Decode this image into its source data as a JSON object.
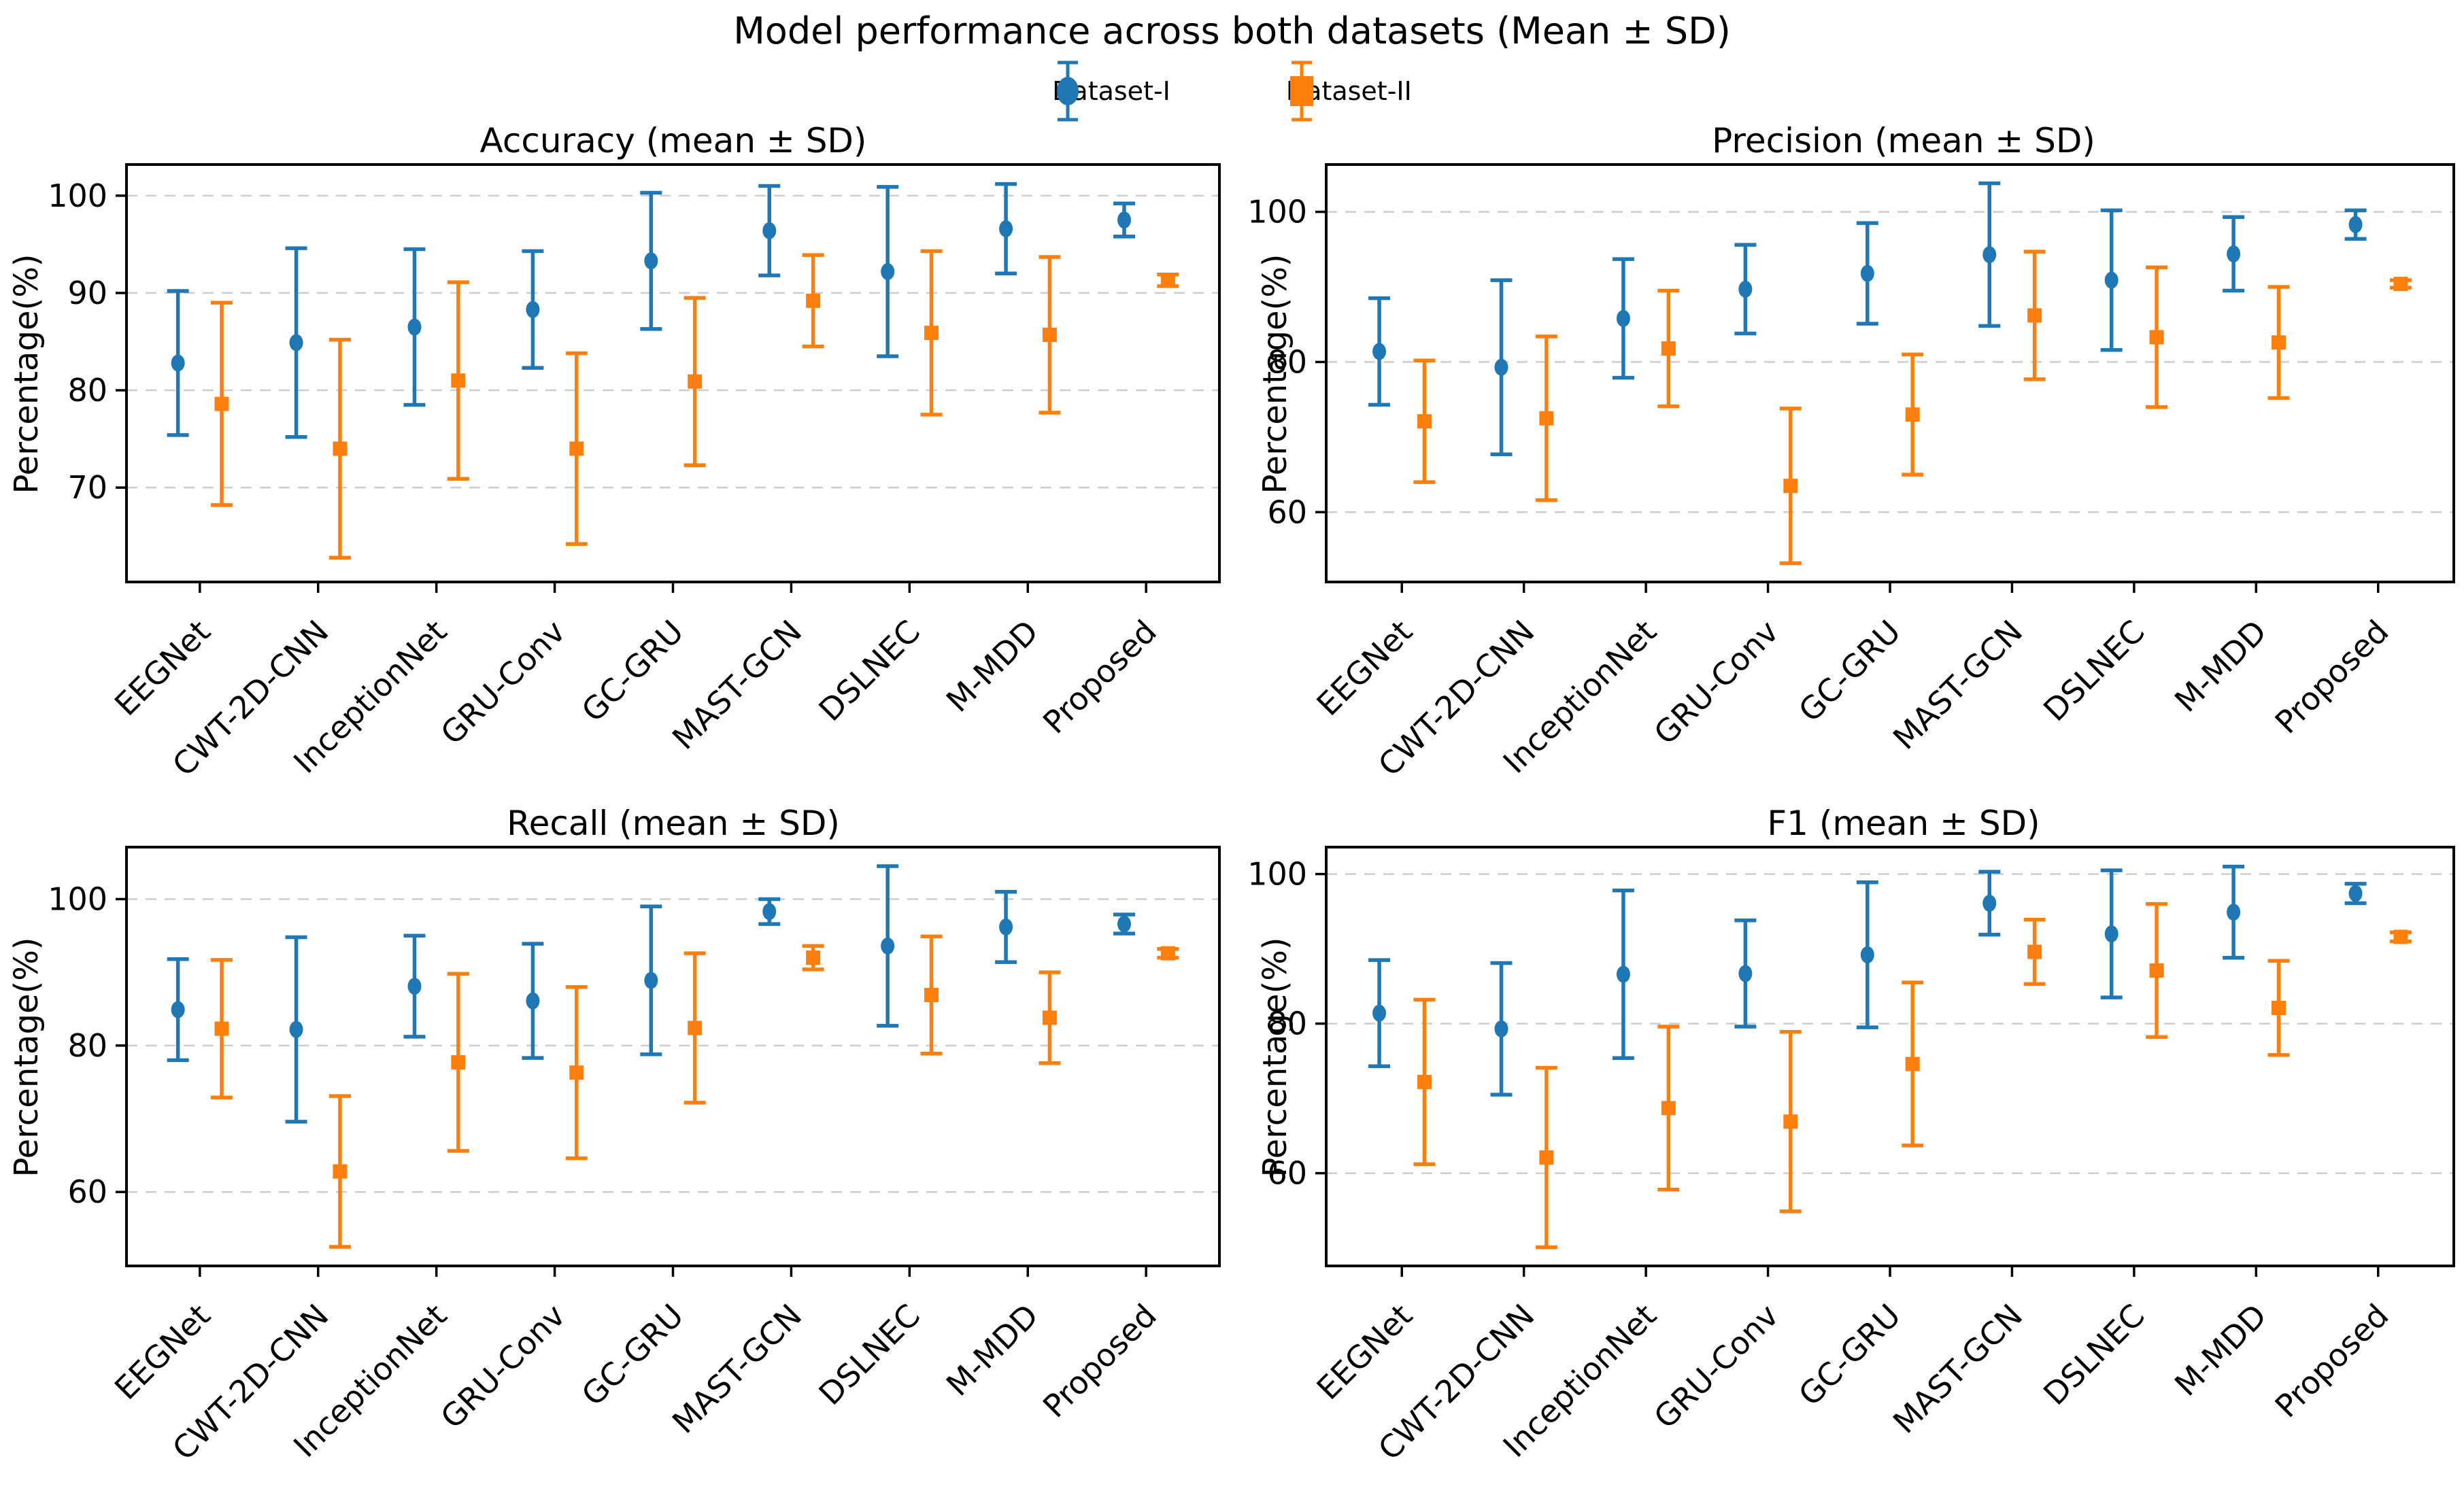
{
  "suptitle": "Model performance across both datasets (Mean ± SD)",
  "legend": [
    {
      "label": "Dataset-I",
      "marker": "circle",
      "color": "#1f77b4"
    },
    {
      "label": "Dataset-II",
      "marker": "square",
      "color": "#ff7f0e"
    }
  ],
  "colors": {
    "dataset1": "#1f77b4",
    "dataset2": "#ff7f0e",
    "grid": "#cdcdcd",
    "spine": "#000000"
  },
  "categories": [
    "EEGNet",
    "CWT-2D-CNN",
    "InceptionNet",
    "GRU-Conv",
    "GC-GRU",
    "MAST-GCN",
    "DSLNEC",
    "M-MDD",
    "Proposed"
  ],
  "chart_data": [
    {
      "type": "errorbar",
      "title": "Accuracy (mean ± SD)",
      "ylabel": "Percentage(%)",
      "yticks": [
        70,
        80,
        90,
        100
      ],
      "ylim": [
        60.3,
        103.2
      ],
      "grid": true,
      "series": [
        {
          "name": "Dataset-I",
          "marker": "circle",
          "color": "#1f77b4",
          "means": [
            82.8,
            84.9,
            86.5,
            88.3,
            93.3,
            96.4,
            92.2,
            96.6,
            97.5
          ],
          "sd": [
            7.4,
            9.7,
            8.0,
            6.0,
            7.0,
            4.6,
            8.7,
            4.6,
            1.7
          ]
        },
        {
          "name": "Dataset-II",
          "marker": "square",
          "color": "#ff7f0e",
          "means": [
            78.6,
            74.0,
            81.0,
            74.0,
            80.9,
            89.2,
            85.9,
            85.7,
            91.3
          ],
          "sd": [
            10.4,
            11.2,
            10.1,
            9.8,
            8.6,
            4.7,
            8.4,
            8.0,
            0.6
          ]
        }
      ]
    },
    {
      "type": "errorbar",
      "title": "Precision (mean ± SD)",
      "ylabel": "Percentage(%)",
      "yticks": [
        60,
        80,
        100
      ],
      "ylim": [
        50.7,
        106.3
      ],
      "grid": true,
      "series": [
        {
          "name": "Dataset-I",
          "marker": "circle",
          "color": "#1f77b4",
          "means": [
            81.4,
            79.3,
            85.8,
            89.7,
            91.8,
            94.3,
            90.9,
            94.4,
            98.3
          ],
          "sd": [
            7.1,
            11.6,
            7.9,
            5.9,
            6.7,
            9.5,
            9.3,
            4.9,
            1.9
          ]
        },
        {
          "name": "Dataset-II",
          "marker": "square",
          "color": "#ff7f0e",
          "means": [
            72.1,
            72.5,
            81.8,
            63.5,
            73.0,
            86.2,
            83.3,
            82.6,
            90.4
          ],
          "sd": [
            8.1,
            10.9,
            7.7,
            10.3,
            8.0,
            8.5,
            9.3,
            7.4,
            0.5
          ]
        }
      ]
    },
    {
      "type": "errorbar",
      "title": "Recall (mean ± SD)",
      "ylabel": "Percentage(%)",
      "yticks": [
        60,
        80,
        100
      ],
      "ylim": [
        49.9,
        107.1
      ],
      "grid": true,
      "series": [
        {
          "name": "Dataset-I",
          "marker": "circle",
          "color": "#1f77b4",
          "means": [
            84.9,
            82.2,
            88.1,
            86.1,
            88.9,
            98.3,
            93.6,
            96.2,
            96.6
          ],
          "sd": [
            6.9,
            12.6,
            6.9,
            7.8,
            10.1,
            1.7,
            10.9,
            4.8,
            1.3
          ]
        },
        {
          "name": "Dataset-II",
          "marker": "square",
          "color": "#ff7f0e",
          "means": [
            82.3,
            62.8,
            77.7,
            76.3,
            82.4,
            92.0,
            86.9,
            83.8,
            92.6
          ],
          "sd": [
            9.4,
            10.3,
            12.1,
            11.7,
            10.2,
            1.6,
            8.0,
            6.2,
            0.6
          ]
        }
      ]
    },
    {
      "type": "errorbar",
      "title": "F1 (mean ± SD)",
      "ylabel": "Percentage(%)",
      "yticks": [
        60,
        80,
        100
      ],
      "ylim": [
        47.6,
        103.6
      ],
      "grid": true,
      "series": [
        {
          "name": "Dataset-I",
          "marker": "circle",
          "color": "#1f77b4",
          "means": [
            81.4,
            79.3,
            86.6,
            86.7,
            89.2,
            96.1,
            92.0,
            94.9,
            97.4
          ],
          "sd": [
            7.1,
            8.8,
            11.2,
            7.1,
            9.7,
            4.2,
            8.5,
            6.1,
            1.3
          ]
        },
        {
          "name": "Dataset-II",
          "marker": "square",
          "color": "#ff7f0e",
          "means": [
            72.2,
            62.1,
            68.7,
            66.9,
            74.6,
            89.6,
            87.1,
            82.1,
            91.6
          ],
          "sd": [
            11.0,
            12.0,
            10.9,
            12.0,
            10.9,
            4.3,
            8.9,
            6.3,
            0.6
          ]
        }
      ]
    }
  ]
}
